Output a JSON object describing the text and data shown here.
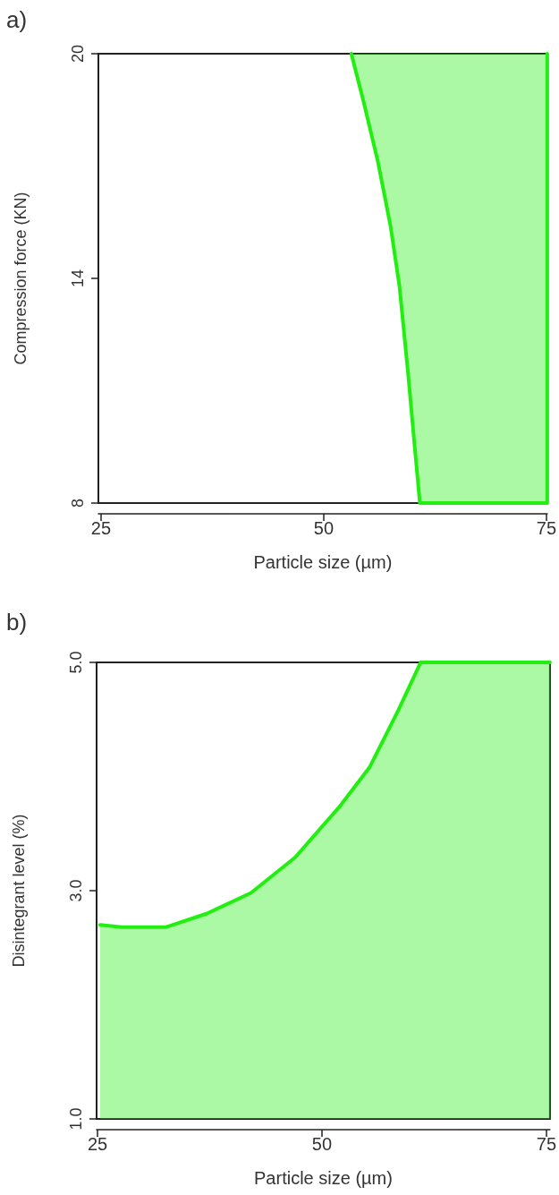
{
  "chart_data": [
    {
      "type": "area",
      "orientation": "horizontal",
      "title": "a)",
      "xlabel": "Particle size (µm)",
      "ylabel": "Compression force (KN)",
      "x": [
        20,
        18.7,
        17.1,
        15.4,
        13.8,
        11.4,
        9.8,
        8,
        8,
        20
      ],
      "series": [
        {
          "color": "#22ee11",
          "values": [
            53.1,
            54.5,
            56.1,
            57.5,
            58.5,
            59.5,
            60.1,
            60.8,
            75.1,
            75.1
          ]
        }
      ],
      "xlim": [
        24.7,
        75.1
      ],
      "ylim": [
        8,
        20
      ],
      "xticks": [
        25,
        50,
        75
      ],
      "yticks": [
        8,
        14,
        20
      ],
      "grid": false,
      "marker": "none"
    },
    {
      "type": "area",
      "title": "b)",
      "xlabel": "Particle size (µm)",
      "ylabel": "Disintegrant level (%)",
      "x": [
        25.3,
        27.7,
        32.6,
        37.2,
        42.1,
        47,
        51.9,
        55.3,
        58.5,
        61,
        75.4
      ],
      "series": [
        {
          "color": "#22ee11",
          "values": [
            2.7,
            2.68,
            2.68,
            2.8,
            2.98,
            3.29,
            3.73,
            4.08,
            4.58,
            5,
            5
          ]
        }
      ],
      "xlim": [
        24.9,
        75.4
      ],
      "ylim": [
        1,
        5
      ],
      "xticks": [
        25,
        50,
        75
      ],
      "yticks": [
        {
          "value": 1,
          "label": "1.0"
        },
        {
          "value": 3,
          "label": "3.0"
        },
        {
          "value": 5,
          "label": "5.0"
        }
      ],
      "grid": false,
      "marker": "none"
    }
  ]
}
